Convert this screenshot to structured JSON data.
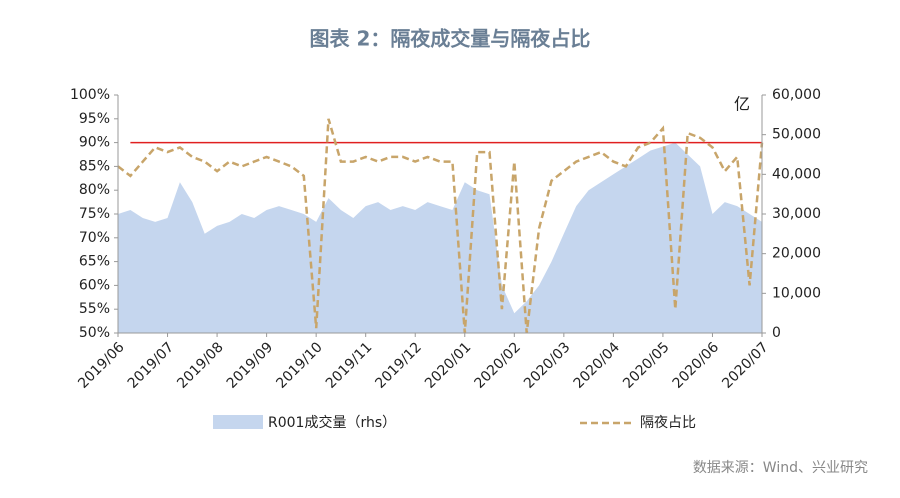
{
  "chart_data": {
    "type": "area-line",
    "title": "图表 2：隔夜成交量与隔夜占比",
    "source": "数据来源：Wind、兴业研究",
    "y2_unit": "亿",
    "categories": [
      "2019/06",
      null,
      null,
      null,
      "2019/07",
      null,
      null,
      null,
      "2019/08",
      null,
      null,
      null,
      "2019/09",
      null,
      null,
      null,
      "2019/10",
      null,
      null,
      null,
      "2019/11",
      null,
      null,
      null,
      "2019/12",
      null,
      null,
      null,
      "2020/01",
      null,
      null,
      null,
      "2020/02",
      null,
      null,
      null,
      "2020/03",
      null,
      null,
      null,
      "2020/04",
      null,
      null,
      null,
      "2020/05",
      null,
      null,
      null,
      "2020/06",
      null,
      null,
      null,
      "2020/07"
    ],
    "series": [
      {
        "name": "R001成交量（rhs）",
        "color": "#c5d6ee",
        "axis": "y2",
        "kind": "area",
        "values": [
          30000,
          31000,
          29000,
          28000,
          29000,
          38000,
          33000,
          25000,
          27000,
          28000,
          30000,
          29000,
          31000,
          32000,
          31000,
          30000,
          28000,
          34000,
          31000,
          29000,
          32000,
          33000,
          31000,
          32000,
          31000,
          33000,
          32000,
          31000,
          38000,
          36000,
          35000,
          12000,
          5000,
          8000,
          12000,
          18000,
          25000,
          32000,
          36000,
          38000,
          40000,
          42000,
          44000,
          46000,
          47000,
          48000,
          45000,
          42000,
          30000,
          33000,
          32000,
          30000,
          28000
        ]
      },
      {
        "name": "隔夜占比",
        "color": "#c8a56a",
        "kind": "dashed-line",
        "values": [
          85,
          83,
          86,
          89,
          88,
          89,
          87,
          86,
          84,
          86,
          85,
          86,
          87,
          86,
          85,
          83,
          51,
          95,
          86,
          86,
          87,
          86,
          87,
          87,
          86,
          87,
          86,
          86,
          50,
          88,
          88,
          55,
          86,
          50,
          72,
          82,
          84,
          86,
          87,
          88,
          86,
          85,
          89,
          90,
          93,
          55,
          92,
          91,
          89,
          84,
          87,
          60,
          90
        ]
      }
    ],
    "ref_line": {
      "value": 90,
      "color": "#e02020"
    },
    "ylim": [
      50,
      100
    ],
    "yticks": [
      {
        "value": 50,
        "label": "50%"
      },
      {
        "value": 55,
        "label": "55%"
      },
      {
        "value": 60,
        "label": "60%"
      },
      {
        "value": 65,
        "label": "65%"
      },
      {
        "value": 70,
        "label": "70%"
      },
      {
        "value": 75,
        "label": "75%"
      },
      {
        "value": 80,
        "label": "80%"
      },
      {
        "value": 85,
        "label": "85%"
      },
      {
        "value": 90,
        "label": "90%"
      },
      {
        "value": 95,
        "label": "95%"
      },
      {
        "value": 100,
        "label": "100%"
      }
    ],
    "y2lim": [
      0,
      60000
    ],
    "y2ticks": [
      0,
      {
        "value": 10000,
        "label": "10,000"
      },
      {
        "value": 20000,
        "label": "20,000"
      },
      {
        "value": 30000,
        "label": "30,000"
      },
      {
        "value": 40000,
        "label": "40,000"
      },
      {
        "value": 50000,
        "label": "50,000"
      },
      {
        "value": 60000,
        "label": "60,000"
      }
    ]
  }
}
